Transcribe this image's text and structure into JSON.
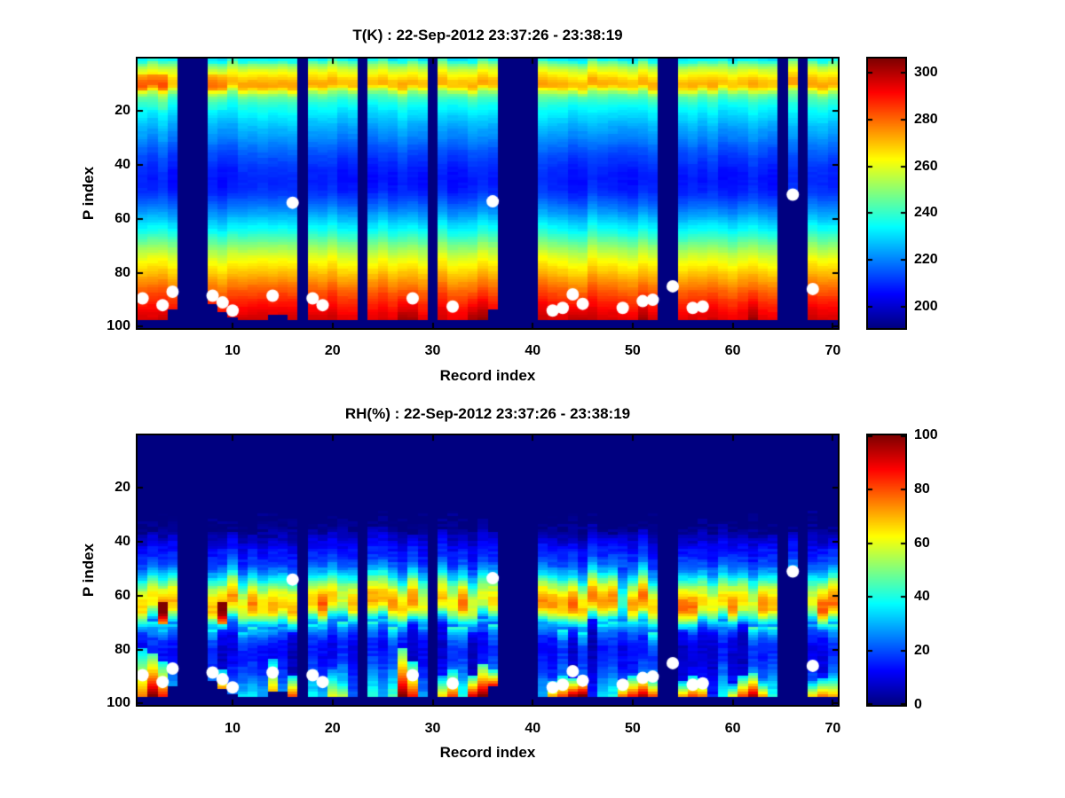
{
  "chart_data": [
    {
      "type": "heatmap",
      "title": "T(K) : 22-Sep-2012 23:37:26 - 23:38:19",
      "xlabel": "Record index",
      "ylabel": "P index",
      "x_range": [
        1,
        70
      ],
      "y_range": [
        1,
        100
      ],
      "y_axis_reversed": true,
      "xticks": [
        10,
        20,
        30,
        40,
        50,
        60,
        70
      ],
      "yticks": [
        20,
        40,
        60,
        80,
        100
      ],
      "grid": false,
      "colormap": "jet",
      "clim": [
        191,
        306
      ],
      "colorbar_ticks": [
        200,
        220,
        240,
        260,
        280,
        300
      ],
      "missing_color_is_colormap_min": true,
      "missing_records": [
        5,
        6,
        7,
        17,
        23,
        30,
        37,
        38,
        39,
        40,
        53,
        54,
        65,
        67
      ],
      "surface_default": 97,
      "surface_overrides": {
        "4": 93,
        "8": 91.5,
        "9": 94.5,
        "10": 96,
        "14": 95.5,
        "15": 95.5,
        "36": 93.5,
        "66": 51.5
      },
      "profile_p_T": [
        [
          1,
          233
        ],
        [
          2,
          243
        ],
        [
          3,
          250
        ],
        [
          4,
          255
        ],
        [
          5,
          259
        ],
        [
          6,
          262
        ],
        [
          7,
          265
        ],
        [
          8,
          268
        ],
        [
          9,
          271
        ],
        [
          10,
          272
        ],
        [
          11,
          271
        ],
        [
          12,
          263
        ],
        [
          13,
          253
        ],
        [
          14,
          246
        ],
        [
          16,
          240
        ],
        [
          18,
          236
        ],
        [
          20,
          233
        ],
        [
          23,
          229
        ],
        [
          26,
          225
        ],
        [
          30,
          221
        ],
        [
          34,
          216
        ],
        [
          38,
          212
        ],
        [
          42,
          209
        ],
        [
          46,
          208
        ],
        [
          50,
          210
        ],
        [
          54,
          216
        ],
        [
          58,
          223
        ],
        [
          62,
          231
        ],
        [
          66,
          240
        ],
        [
          70,
          250
        ],
        [
          74,
          259
        ],
        [
          78,
          266
        ],
        [
          82,
          273
        ],
        [
          86,
          280
        ],
        [
          90,
          287
        ],
        [
          93,
          291
        ],
        [
          96,
          295
        ],
        [
          100,
          297
        ]
      ],
      "hotspots": [
        {
          "r0": 1,
          "r1": 3.5,
          "p0": 6.5,
          "p1": 12.5,
          "dv": 9
        },
        {
          "r0": 7.5,
          "r1": 9.5,
          "p0": 6.5,
          "p1": 12.5,
          "dv": 8
        },
        {
          "r0": 2,
          "r1": 3.5,
          "p0": 12.5,
          "p1": 19,
          "dv": 4
        },
        {
          "r0": 8,
          "r1": 9.5,
          "p0": 12.5,
          "p1": 19,
          "dv": 3
        }
      ],
      "bottom_enhanced_records": [
        27,
        28,
        34,
        35,
        44,
        45,
        51,
        62
      ],
      "noise": {
        "cell": 1.6,
        "col_offset": 5,
        "col_vshift": 3
      },
      "scatter": {
        "marker": "circle",
        "color": "#ffffff",
        "points": [
          [
            1,
            89.5
          ],
          [
            3,
            92
          ],
          [
            4,
            87
          ],
          [
            8,
            88.5
          ],
          [
            9,
            91
          ],
          [
            10,
            94
          ],
          [
            14,
            88.5
          ],
          [
            16,
            54
          ],
          [
            18,
            89.5
          ],
          [
            19,
            92
          ],
          [
            28,
            89.5
          ],
          [
            32,
            92.5
          ],
          [
            36,
            53.5
          ],
          [
            42,
            94
          ],
          [
            43,
            93
          ],
          [
            44,
            88
          ],
          [
            45,
            91.5
          ],
          [
            49,
            93
          ],
          [
            51,
            90.5
          ],
          [
            52,
            90
          ],
          [
            54,
            85
          ],
          [
            56,
            93
          ],
          [
            57,
            92.5
          ],
          [
            66,
            51
          ],
          [
            68,
            86
          ]
        ]
      }
    },
    {
      "type": "heatmap",
      "title": "RH(%) : 22-Sep-2012 23:37:26 - 23:38:19",
      "xlabel": "Record index",
      "ylabel": "P index",
      "x_range": [
        1,
        70
      ],
      "y_range": [
        1,
        100
      ],
      "y_axis_reversed": true,
      "xticks": [
        10,
        20,
        30,
        40,
        50,
        60,
        70
      ],
      "yticks": [
        20,
        40,
        60,
        80,
        100
      ],
      "grid": false,
      "colormap": "jet",
      "clim": [
        0,
        100
      ],
      "colorbar_ticks": [
        0,
        20,
        40,
        60,
        80,
        100
      ],
      "missing_color_is_colormap_min": true,
      "missing_records": [
        5,
        6,
        7,
        17,
        23,
        30,
        37,
        38,
        39,
        40,
        53,
        54,
        65,
        67
      ],
      "surface_default": 97,
      "surface_overrides": {
        "4": 93,
        "8": 91.5,
        "9": 94.5,
        "10": 96,
        "14": 95.5,
        "15": 95.5,
        "36": 93.5,
        "66": 51.5
      },
      "profile_p_RH": [
        [
          1,
          0
        ],
        [
          30,
          0
        ],
        [
          33,
          1
        ],
        [
          36,
          3
        ],
        [
          38,
          6
        ],
        [
          40,
          10
        ],
        [
          42,
          13
        ],
        [
          44,
          15
        ],
        [
          46,
          17
        ],
        [
          48,
          20
        ],
        [
          50,
          26
        ],
        [
          52,
          33
        ],
        [
          54,
          42
        ],
        [
          56,
          52
        ],
        [
          58,
          60
        ],
        [
          60,
          66
        ],
        [
          62,
          70
        ],
        [
          64,
          69
        ],
        [
          66,
          60
        ],
        [
          68,
          45
        ],
        [
          70,
          30
        ],
        [
          72,
          20
        ],
        [
          74,
          15
        ],
        [
          76,
          12
        ],
        [
          78,
          10
        ],
        [
          80,
          9
        ],
        [
          82,
          9
        ],
        [
          84,
          10
        ],
        [
          86,
          11
        ],
        [
          88,
          13
        ],
        [
          90,
          15
        ],
        [
          92,
          17
        ],
        [
          94,
          19
        ],
        [
          96,
          21
        ],
        [
          98,
          22
        ]
      ],
      "col_start": {
        "base": 32,
        "jitter": 6,
        "record_66": 37
      },
      "band_hotspots": [
        {
          "r0": 2.5,
          "r1": 3.5,
          "p0": 63,
          "p1": 70,
          "dv": 30
        },
        {
          "r0": 8.5,
          "r1": 9.5,
          "p0": 63,
          "p1": 70,
          "dv": 28
        }
      ],
      "band_dip_records": [
        49
      ],
      "bottom_spikes": {
        "1": [
          80,
          75
        ],
        "2": [
          82,
          100
        ],
        "3": [
          85,
          85
        ],
        "9": [
          88,
          75
        ],
        "14": [
          84,
          70
        ],
        "16": [
          90,
          80
        ],
        "20": [
          88,
          60
        ],
        "21": [
          90,
          55
        ],
        "27": [
          80,
          100
        ],
        "28": [
          85,
          85
        ],
        "31": [
          90,
          65
        ],
        "32": [
          88,
          80
        ],
        "34": [
          90,
          90
        ],
        "35": [
          86,
          100
        ],
        "36": [
          88,
          90
        ],
        "42": [
          92,
          70
        ],
        "43": [
          90,
          80
        ],
        "44": [
          91,
          95
        ],
        "45": [
          90,
          100
        ],
        "49": [
          92,
          75
        ],
        "50": [
          90,
          85
        ],
        "51": [
          89,
          95
        ],
        "52": [
          91,
          80
        ],
        "55": [
          92,
          70
        ],
        "56": [
          90,
          80
        ],
        "57": [
          91,
          75
        ],
        "60": [
          93,
          60
        ],
        "61": [
          90,
          80
        ],
        "62": [
          89,
          95
        ],
        "63": [
          92,
          70
        ],
        "68": [
          92,
          65
        ],
        "69": [
          91,
          75
        ],
        "70": [
          90,
          70
        ]
      },
      "noise": {
        "cell": 5,
        "col_vshift": 5,
        "band_mult": [
          0.82,
          1.12
        ],
        "low_mult": [
          0.55,
          2.05
        ]
      },
      "scatter": {
        "marker": "circle",
        "color": "#ffffff",
        "points": [
          [
            1,
            89.5
          ],
          [
            3,
            92
          ],
          [
            4,
            87
          ],
          [
            8,
            88.5
          ],
          [
            9,
            91
          ],
          [
            10,
            94
          ],
          [
            14,
            88.5
          ],
          [
            16,
            54
          ],
          [
            18,
            89.5
          ],
          [
            19,
            92
          ],
          [
            28,
            89.5
          ],
          [
            32,
            92.5
          ],
          [
            36,
            53.5
          ],
          [
            42,
            94
          ],
          [
            43,
            93
          ],
          [
            44,
            88
          ],
          [
            45,
            91.5
          ],
          [
            49,
            93
          ],
          [
            51,
            90.5
          ],
          [
            52,
            90
          ],
          [
            54,
            85
          ],
          [
            56,
            93
          ],
          [
            57,
            92.5
          ],
          [
            66,
            51
          ],
          [
            68,
            86
          ]
        ]
      }
    }
  ]
}
